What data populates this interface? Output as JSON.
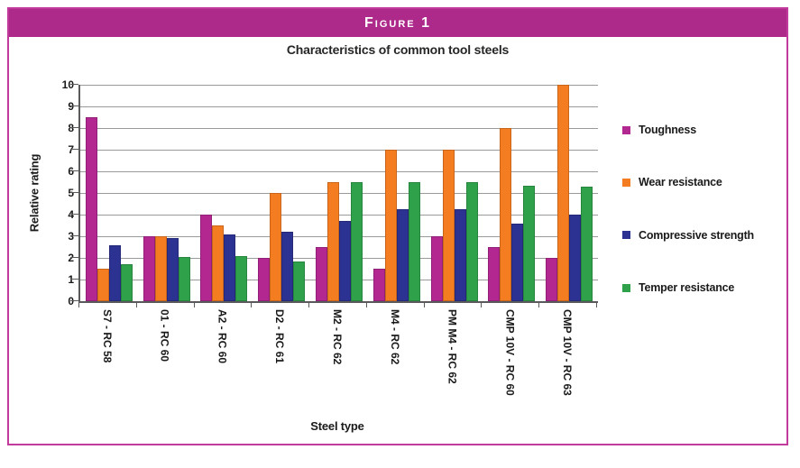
{
  "figure": {
    "label": "Figure 1",
    "band_color": "#ad2a8a",
    "border_color": "#c23a9b"
  },
  "chart_data": {
    "type": "bar",
    "title": "Characteristics of common tool steels",
    "xlabel": "Steel type",
    "ylabel": "Relative rating",
    "ylim": [
      0,
      10
    ],
    "ytick_step": 1,
    "grid": true,
    "legend_position": "right",
    "categories": [
      "S7 - RC 58",
      "01 - RC 60",
      "A2 - RC 60",
      "D2 - RC 61",
      "M2 - RC 62",
      "M4 - RC 62",
      "PM M4 - RC 62",
      "CMP 10V - RC 60",
      "CMP 10V - RC 63"
    ],
    "series": [
      {
        "name": "Toughness",
        "color": "#b32790",
        "values": [
          8.5,
          3.0,
          4.0,
          2.0,
          2.5,
          1.5,
          3.0,
          2.5,
          2.0
        ]
      },
      {
        "name": "Wear resistance",
        "color": "#f47c21",
        "values": [
          1.5,
          3.0,
          3.5,
          5.0,
          5.5,
          7.0,
          7.0,
          8.0,
          10.0
        ]
      },
      {
        "name": "Compressive strength",
        "color": "#2c3292",
        "values": [
          2.6,
          2.9,
          3.1,
          3.2,
          3.7,
          4.25,
          4.25,
          3.6,
          4.0
        ]
      },
      {
        "name": "Temper resistance",
        "color": "#2fa14a",
        "values": [
          1.7,
          2.05,
          2.1,
          1.85,
          5.5,
          5.5,
          5.5,
          5.35,
          5.3
        ]
      }
    ]
  }
}
